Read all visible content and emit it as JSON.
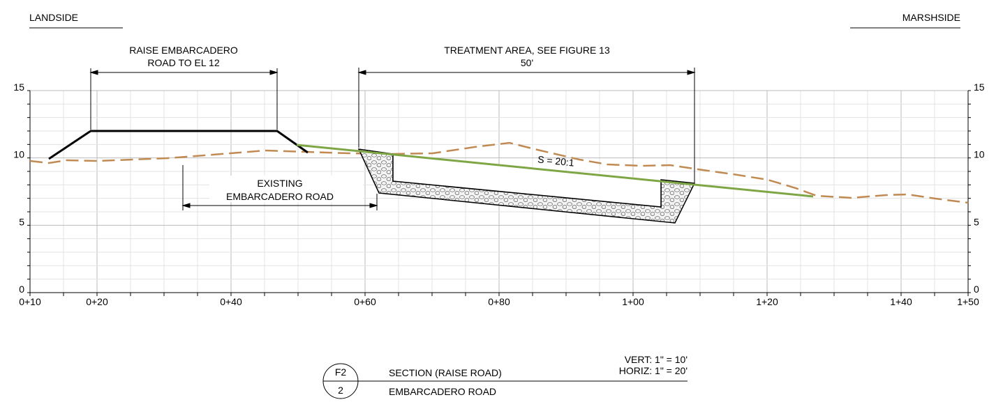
{
  "header": {
    "left": "LANDSIDE",
    "right": "MARSHSIDE"
  },
  "dimensions": {
    "raise_road": [
      "RAISE EMBARCADERO",
      "ROAD TO EL 12"
    ],
    "treatment": [
      "TREATMENT AREA, SEE FIGURE 13",
      "50'"
    ],
    "existing": [
      "EXISTING",
      "EMBARCADERO ROAD"
    ]
  },
  "slope_label": "S = 20:1",
  "axes": {
    "x_labels": [
      "0+10",
      "0+20",
      "0+40",
      "0+60",
      "0+80",
      "1+00",
      "1+20",
      "1+40",
      "1+50"
    ],
    "y_labels": [
      "0",
      "5",
      "10",
      "15"
    ]
  },
  "title_block": {
    "detail": "F2",
    "sheet": "2",
    "title": "SECTION (RAISE ROAD)",
    "subtitle": "EMBARCADERO ROAD",
    "vert_scale": "VERT: 1\" = 10'",
    "horiz_scale": "HORIZ: 1\" = 20'"
  }
}
